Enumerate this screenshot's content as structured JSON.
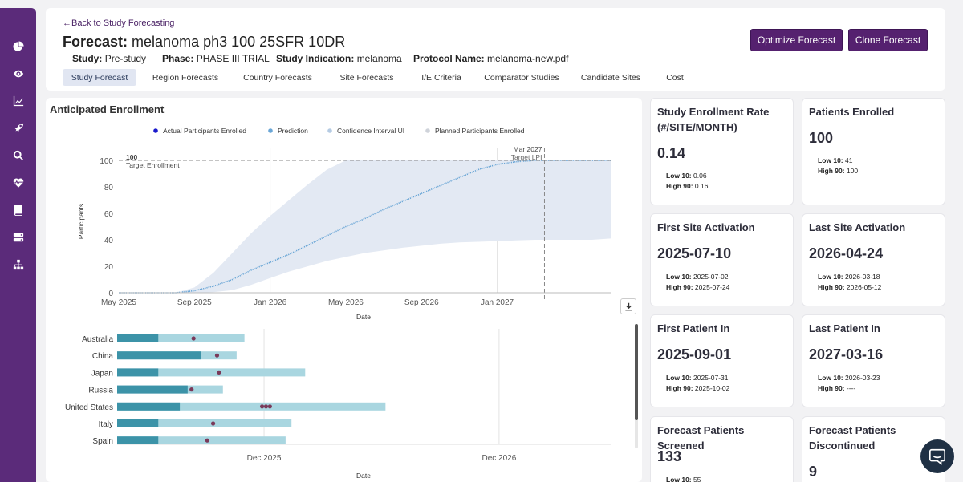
{
  "sidebar": {
    "items": [
      {
        "name": "pie-chart-icon"
      },
      {
        "name": "eye-icon"
      },
      {
        "name": "line-chart-icon"
      },
      {
        "name": "rocket-icon"
      },
      {
        "name": "search-icon"
      },
      {
        "name": "heartbeat-icon"
      },
      {
        "name": "book-icon"
      },
      {
        "name": "server-icon"
      },
      {
        "name": "sitemap-icon"
      }
    ]
  },
  "header": {
    "back_link": "←Back to Study Forecasting",
    "title_label": "Forecast:",
    "title_value": "melanoma ph3 100 25SFR 10DR",
    "meta": [
      {
        "label": "Study:",
        "value": "Pre-study"
      },
      {
        "label": "Phase:",
        "value": "PHASE III TRIAL"
      },
      {
        "label": "Study Indication:",
        "value": "melanoma"
      },
      {
        "label": "Protocol Name:",
        "value": "melanoma-new.pdf"
      }
    ],
    "buttons": {
      "optimize": "Optimize Forecast",
      "clone": "Clone Forecast"
    },
    "tabs": [
      "Study Forecast",
      "Region Forecasts",
      "Country Forecasts",
      "Site Forecasts",
      "I/E Criteria",
      "Comparator Studies",
      "Candidate Sites",
      "Cost"
    ]
  },
  "enrollment_card": {
    "title": "Anticipated Enrollment"
  },
  "chart_data": [
    {
      "type": "line",
      "title": "Anticipated Enrollment",
      "legend": [
        "Actual Participants Enrolled",
        "Prediction",
        "Confidence Interval UI",
        "Planned Participants Enrolled"
      ],
      "xlabel": "Date",
      "ylabel": "Participants",
      "xticks": [
        "May 2025",
        "Sep 2025",
        "Jan 2026",
        "May 2026",
        "Sep 2026",
        "Jan 2027"
      ],
      "yticks": [
        0,
        20,
        40,
        60,
        80,
        100
      ],
      "ylim": [
        0,
        100
      ],
      "x_months_range": [
        0,
        26
      ],
      "target_label": "100",
      "target_text": "Target Enrollment",
      "target_value": 100,
      "lpi_date_label": "Mar 2027",
      "lpi_text": "Target LPI",
      "lpi_month": 22.5,
      "prediction": [
        [
          0,
          0
        ],
        [
          3,
          0
        ],
        [
          4,
          1.5
        ],
        [
          5,
          5
        ],
        [
          6,
          10
        ],
        [
          7,
          17
        ],
        [
          8,
          23
        ],
        [
          9,
          29
        ],
        [
          10,
          36
        ],
        [
          11,
          43
        ],
        [
          12,
          50
        ],
        [
          13,
          56
        ],
        [
          14,
          63
        ],
        [
          15,
          69
        ],
        [
          16,
          75
        ],
        [
          17,
          81
        ],
        [
          18,
          87
        ],
        [
          19,
          93
        ],
        [
          20,
          97
        ],
        [
          21,
          99
        ],
        [
          22,
          100
        ],
        [
          23,
          100
        ],
        [
          24,
          100
        ],
        [
          25,
          100
        ],
        [
          26,
          100
        ]
      ],
      "ci_upper": [
        [
          0,
          0
        ],
        [
          3,
          0
        ],
        [
          4,
          4
        ],
        [
          5,
          15
        ],
        [
          6,
          30
        ],
        [
          7,
          45
        ],
        [
          8,
          58
        ],
        [
          9,
          70
        ],
        [
          10,
          82
        ],
        [
          11,
          93
        ],
        [
          12,
          100
        ],
        [
          26,
          100
        ]
      ],
      "ci_lower": [
        [
          0,
          0
        ],
        [
          4,
          0
        ],
        [
          5,
          0.5
        ],
        [
          6,
          2
        ],
        [
          7,
          6
        ],
        [
          8,
          11
        ],
        [
          9,
          16
        ],
        [
          10,
          20
        ],
        [
          11,
          24
        ],
        [
          12,
          27
        ],
        [
          13,
          30
        ],
        [
          14,
          32
        ],
        [
          15,
          34
        ],
        [
          16,
          35.5
        ],
        [
          17,
          37
        ],
        [
          18,
          38
        ],
        [
          19,
          38.5
        ],
        [
          20,
          39
        ],
        [
          21,
          39.5
        ],
        [
          22,
          40
        ],
        [
          23,
          40
        ],
        [
          24,
          40
        ],
        [
          25,
          40
        ],
        [
          26,
          41
        ]
      ]
    },
    {
      "type": "bar",
      "xlabel": "Date",
      "xticks": [
        "Dec 2025",
        "Dec 2026"
      ],
      "categories": [
        "Australia",
        "China",
        "Japan",
        "Russia",
        "United States",
        "Italy",
        "Spain"
      ],
      "dark_end_months": [
        2.1,
        4.3,
        2.1,
        3.6,
        3.2,
        2.1,
        2.1
      ],
      "light_end_months": [
        6.5,
        6.1,
        9.6,
        5.4,
        13.7,
        8.9,
        8.6
      ],
      "marker_months": [
        [
          3.9
        ],
        [
          5.1
        ],
        [
          5.2
        ],
        [
          3.8
        ],
        [
          7.4,
          7.6,
          7.8
        ],
        [
          4.9
        ],
        [
          4.6
        ]
      ]
    }
  ],
  "stats": [
    {
      "title": "Study Enrollment Rate (#/SITE/MONTH)",
      "value": "0.14",
      "low_label": "Low 10:",
      "low": "0.06",
      "high_label": "High 90:",
      "high": "0.16"
    },
    {
      "title": "Patients Enrolled",
      "value": "100",
      "low_label": "Low 10:",
      "low": "41",
      "high_label": "High 90:",
      "high": "100"
    },
    {
      "title": "First Site Activation",
      "value": "2025-07-10",
      "low_label": "Low 10:",
      "low": "2025-07-02",
      "high_label": "High 90:",
      "high": "2025-07-24"
    },
    {
      "title": "Last Site Activation",
      "value": "2026-04-24",
      "low_label": "Low 10:",
      "low": "2026-03-18",
      "high_label": "High 90:",
      "high": "2026-05-12"
    },
    {
      "title": "First Patient In",
      "value": "2025-09-01",
      "low_label": "Low 10:",
      "low": "2025-07-31",
      "high_label": "High 90:",
      "high": "2025-10-02"
    },
    {
      "title": "Last Patient In",
      "value": "2027-03-16",
      "low_label": "Low 10:",
      "low": "2026-03-23",
      "high_label": "High 90:",
      "high": "----"
    },
    {
      "title": "Forecast Patients Screened",
      "value": "133",
      "low_label": "Low 10:",
      "low": "55"
    },
    {
      "title": "Forecast Patients Discontinued",
      "value": "9"
    }
  ],
  "colors": {
    "brand": "#55216f",
    "sidebar": "#5b2b7a",
    "prediction": "#6aa6d6",
    "ci": "#e3e9f3",
    "bar_dark": "#3c93a8",
    "bar_light": "#a9d6e0",
    "marker": "#7a3a5a"
  }
}
